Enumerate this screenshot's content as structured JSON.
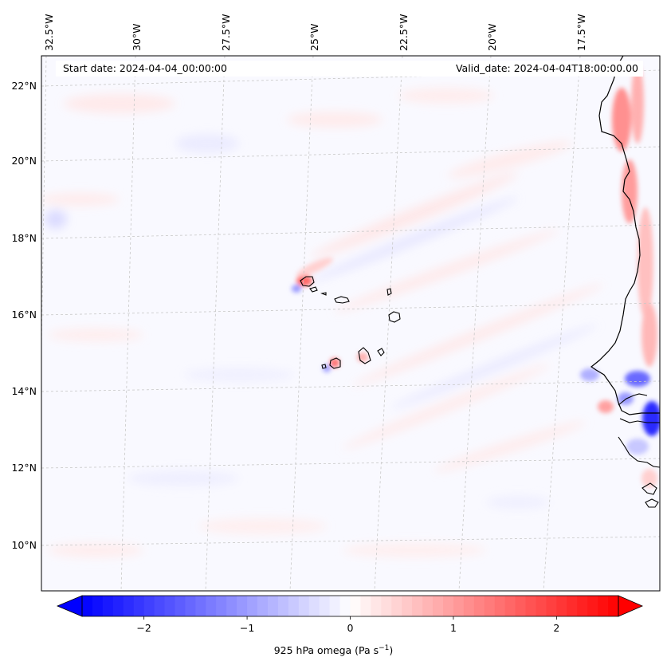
{
  "map": {
    "header_left": "Start date: 2024-04-04_00:00:00",
    "header_right": "Valid_date: 2024-04-04T18:00:00.00",
    "lon_labels": [
      "32.5°W",
      "30°W",
      "27.5°W",
      "25°W",
      "22.5°W",
      "20°W",
      "17.5°W"
    ],
    "lat_labels": [
      "22°N",
      "20°N",
      "18°N",
      "16°N",
      "14°N",
      "12°N",
      "10°N"
    ]
  },
  "colorbar": {
    "label": "925 hPa omega (Pa s",
    "label_exp": "−1",
    "label_close": ")",
    "ticks": [
      "−2",
      "−1",
      "0",
      "1",
      "2"
    ],
    "tick_values": [
      -2,
      -1,
      0,
      1,
      2
    ],
    "vmin": -2.6,
    "vmax": 2.6,
    "colormap": "bwr",
    "color_low": "#0000ff",
    "color_mid": "#ffffff",
    "color_high": "#ff0000"
  },
  "colors": {
    "coast": "#000000",
    "grid": "#c8c8c8",
    "field_bg": "#f7f7ff"
  }
}
